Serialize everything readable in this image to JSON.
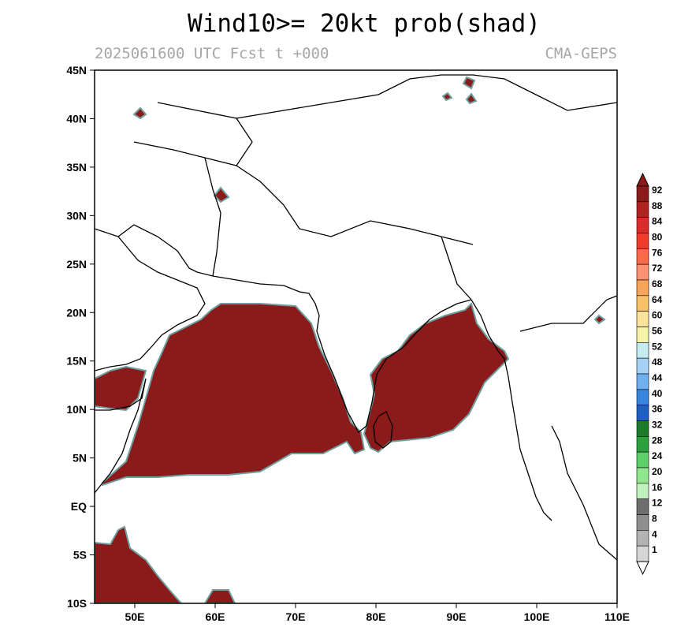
{
  "title": "Wind10>= 20kt prob(shad)",
  "subtitle_left": "2025061600 UTC Fcst t +000",
  "subtitle_right": "CMA-GEPS",
  "map": {
    "lon_range": [
      45,
      110
    ],
    "lat_range": [
      -10,
      45
    ],
    "lon_ticks": [
      "50E",
      "60E",
      "70E",
      "80E",
      "90E",
      "100E",
      "110E"
    ],
    "lat_ticks": [
      "45N",
      "40N",
      "35N",
      "30N",
      "25N",
      "20N",
      "15N",
      "10N",
      "5N",
      "EQ",
      "5S",
      "10S"
    ],
    "shading_color": "#8b1a1a"
  },
  "colorbar": {
    "labels": [
      "92",
      "88",
      "84",
      "80",
      "76",
      "72",
      "68",
      "64",
      "60",
      "56",
      "52",
      "48",
      "44",
      "40",
      "36",
      "32",
      "28",
      "24",
      "20",
      "16",
      "12",
      "8",
      "4",
      "1"
    ],
    "colors": [
      "#8b1a1a",
      "#b22222",
      "#dc2b2b",
      "#ef3b2c",
      "#fb6a4a",
      "#fc9272",
      "#f7a55a",
      "#f8c26a",
      "#fbe39b",
      "#f4f2a8",
      "#c6ecf2",
      "#a6d3f5",
      "#6fb0ee",
      "#3a85dc",
      "#1f5fc4",
      "#1c7b2a",
      "#2ca03c",
      "#5fcf6a",
      "#8fe68f",
      "#bff2bf",
      "#6e6e6e",
      "#8e8e8e",
      "#b3b3b3",
      "#d6d6d6"
    ]
  }
}
